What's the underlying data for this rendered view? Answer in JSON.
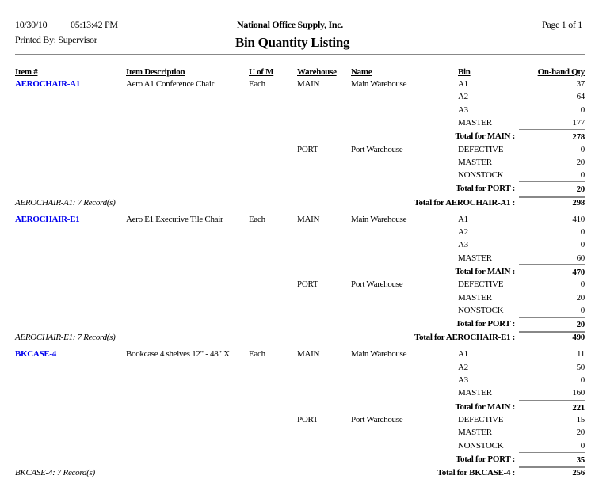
{
  "header": {
    "date": "10/30/10",
    "time": "05:13:42 PM",
    "company": "National Office Supply, Inc.",
    "page": "Page 1 of 1",
    "printed_by": "Printed By: Supervisor",
    "title": "Bin Quantity Listing"
  },
  "columns": {
    "item": "Item #",
    "description": "Item Description",
    "uom": "U of M",
    "warehouse": "Warehouse",
    "name": "Name",
    "bin": "Bin",
    "qty": "On-hand Qty"
  },
  "link_color": "#0000ee",
  "items": [
    {
      "item": "AEROCHAIR-A1",
      "description": "Aero A1 Conference Chair",
      "uom": "Each",
      "warehouses": [
        {
          "code": "MAIN",
          "name": "Main Warehouse",
          "bins": [
            [
              "A1",
              "37"
            ],
            [
              "A2",
              "64"
            ],
            [
              "A3",
              "0"
            ],
            [
              "MASTER",
              "177"
            ]
          ],
          "total_label": "Total for MAIN :",
          "total": "278"
        },
        {
          "code": "PORT",
          "name": "Port Warehouse",
          "bins": [
            [
              "DEFECTIVE",
              "0"
            ],
            [
              "MASTER",
              "20"
            ],
            [
              "NONSTOCK",
              "0"
            ]
          ],
          "total_label": "Total for PORT :",
          "total": "20"
        }
      ],
      "records": "AEROCHAIR-A1: 7 Record(s)",
      "total_label": "Total for AEROCHAIR-A1 :",
      "total": "298"
    },
    {
      "item": "AEROCHAIR-E1",
      "description": "Aero E1 Executive Tile Chair",
      "uom": "Each",
      "warehouses": [
        {
          "code": "MAIN",
          "name": "Main Warehouse",
          "bins": [
            [
              "A1",
              "410"
            ],
            [
              "A2",
              "0"
            ],
            [
              "A3",
              "0"
            ],
            [
              "MASTER",
              "60"
            ]
          ],
          "total_label": "Total for MAIN :",
          "total": "470"
        },
        {
          "code": "PORT",
          "name": "Port Warehouse",
          "bins": [
            [
              "DEFECTIVE",
              "0"
            ],
            [
              "MASTER",
              "20"
            ],
            [
              "NONSTOCK",
              "0"
            ]
          ],
          "total_label": "Total for PORT :",
          "total": "20"
        }
      ],
      "records": "AEROCHAIR-E1: 7 Record(s)",
      "total_label": "Total for AEROCHAIR-E1 :",
      "total": "490"
    },
    {
      "item": "BKCASE-4",
      "description": "Bookcase 4 shelves 12\" - 48\" X",
      "uom": "Each",
      "warehouses": [
        {
          "code": "MAIN",
          "name": "Main Warehouse",
          "bins": [
            [
              "A1",
              "11"
            ],
            [
              "A2",
              "50"
            ],
            [
              "A3",
              "0"
            ],
            [
              "MASTER",
              "160"
            ]
          ],
          "total_label": "Total for MAIN :",
          "total": "221"
        },
        {
          "code": "PORT",
          "name": "Port Warehouse",
          "bins": [
            [
              "DEFECTIVE",
              "15"
            ],
            [
              "MASTER",
              "20"
            ],
            [
              "NONSTOCK",
              "0"
            ]
          ],
          "total_label": "Total for PORT :",
          "total": "35"
        }
      ],
      "records": "BKCASE-4: 7 Record(s)",
      "total_label": "Total for BKCASE-4 :",
      "total": "256"
    }
  ]
}
